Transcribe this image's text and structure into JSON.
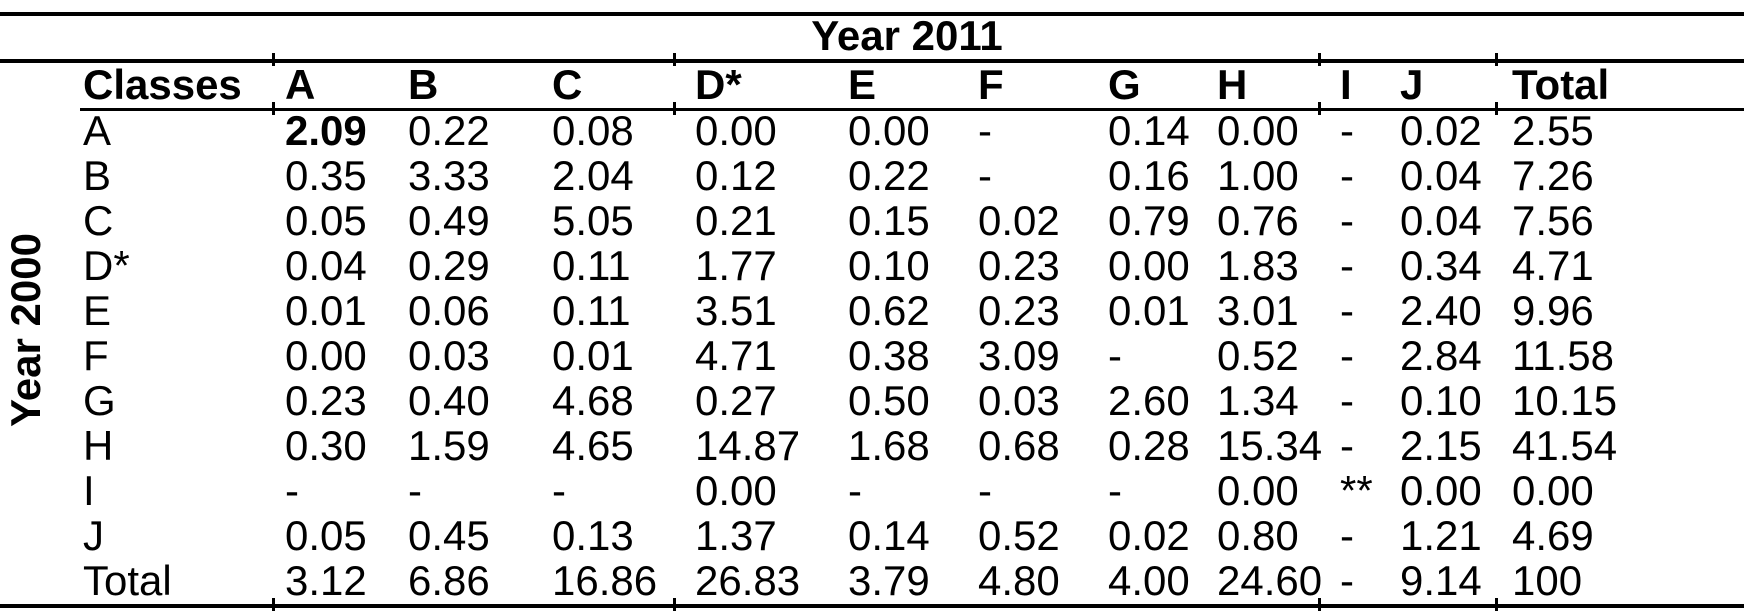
{
  "table": {
    "col_group_title": "Year 2011",
    "row_group_title": "Year 2000",
    "stub_header": "Classes",
    "columns": [
      "A",
      "B",
      "C",
      "D*",
      "E",
      "F",
      "G",
      "H",
      "I",
      "J",
      "Total"
    ],
    "rows": [
      {
        "label": "A",
        "values": [
          "2.09",
          "0.22",
          "0.08",
          "0.00",
          "0.00",
          "-",
          "0.14",
          "0.00",
          "-",
          "0.02",
          "2.55"
        ],
        "bold_cells": [
          0
        ]
      },
      {
        "label": "B",
        "values": [
          "0.35",
          "3.33",
          "2.04",
          "0.12",
          "0.22",
          "-",
          "0.16",
          "1.00",
          "-",
          "0.04",
          "7.26"
        ],
        "bold_cells": []
      },
      {
        "label": "C",
        "values": [
          "0.05",
          "0.49",
          "5.05",
          "0.21",
          "0.15",
          "0.02",
          "0.79",
          "0.76",
          "-",
          "0.04",
          "7.56"
        ],
        "bold_cells": []
      },
      {
        "label": "D*",
        "values": [
          "0.04",
          "0.29",
          "0.11",
          "1.77",
          "0.10",
          "0.23",
          "0.00",
          "1.83",
          "-",
          "0.34",
          "4.71"
        ],
        "bold_cells": []
      },
      {
        "label": "E",
        "values": [
          "0.01",
          "0.06",
          "0.11",
          "3.51",
          "0.62",
          "0.23",
          "0.01",
          "3.01",
          "-",
          "2.40",
          "9.96"
        ],
        "bold_cells": []
      },
      {
        "label": "F",
        "values": [
          "0.00",
          "0.03",
          "0.01",
          "4.71",
          "0.38",
          "3.09",
          "-",
          "0.52",
          "-",
          "2.84",
          "11.58"
        ],
        "bold_cells": []
      },
      {
        "label": "G",
        "values": [
          "0.23",
          "0.40",
          "4.68",
          "0.27",
          "0.50",
          "0.03",
          "2.60",
          "1.34",
          "-",
          "0.10",
          "10.15"
        ],
        "bold_cells": []
      },
      {
        "label": "H",
        "values": [
          "0.30",
          "1.59",
          "4.65",
          "14.87",
          "1.68",
          "0.68",
          "0.28",
          "15.34",
          "-",
          "2.15",
          "41.54"
        ],
        "bold_cells": []
      },
      {
        "label": "I",
        "values": [
          "-",
          "-",
          "-",
          "0.00",
          "-",
          "-",
          "-",
          "0.00",
          "**",
          "0.00",
          "0.00"
        ],
        "bold_cells": []
      },
      {
        "label": "J",
        "values": [
          "0.05",
          "0.45",
          "0.13",
          "1.37",
          "0.14",
          "0.52",
          "0.02",
          "0.80",
          "-",
          "1.21",
          "4.69"
        ],
        "bold_cells": []
      },
      {
        "label": "Total",
        "values": [
          "3.12",
          "6.86",
          "16.86",
          "26.83",
          "3.79",
          "4.80",
          "4.00",
          "24.60",
          "-",
          "9.14",
          "100"
        ],
        "bold_cells": []
      }
    ]
  },
  "colors": {
    "background": "#ffffff",
    "text": "#000000",
    "rule": "#000000"
  }
}
